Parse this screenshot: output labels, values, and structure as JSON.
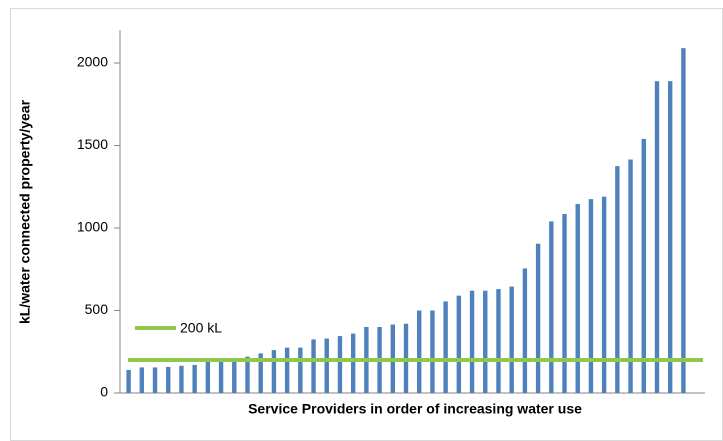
{
  "chart_data": {
    "type": "bar",
    "y_label": "kL/water connected property/year",
    "x_label": "Service Providers in order of increasing water use",
    "categories": [
      null,
      null,
      null,
      null,
      null,
      null,
      null,
      null,
      null,
      null,
      null,
      null,
      null,
      null,
      null,
      null,
      null,
      null,
      null,
      null,
      null,
      null,
      null,
      null,
      null,
      null,
      null,
      null,
      null,
      null,
      null,
      null,
      null,
      null,
      null,
      null,
      null,
      null,
      null,
      null,
      null,
      null,
      null
    ],
    "values": [
      140,
      155,
      155,
      158,
      165,
      170,
      195,
      200,
      210,
      220,
      240,
      260,
      275,
      275,
      325,
      330,
      345,
      360,
      400,
      400,
      415,
      420,
      500,
      500,
      555,
      590,
      620,
      620,
      630,
      645,
      755,
      905,
      1040,
      1085,
      1145,
      1175,
      1190,
      1375,
      1415,
      1540,
      1890,
      1890,
      2090
    ],
    "color": "#4f81bd",
    "reference_line": {
      "name": "200 kL",
      "value": 200,
      "color": "#92c849"
    },
    "ylim": [
      0,
      2200
    ],
    "yticks": [
      0,
      500,
      1000,
      1500,
      2000
    ]
  }
}
